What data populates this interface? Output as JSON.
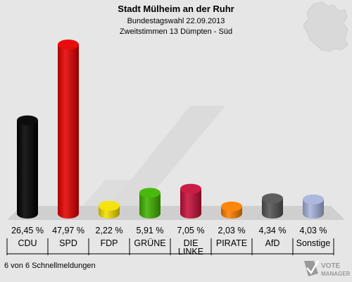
{
  "header": {
    "title": "Stadt Mülheim an der Ruhr",
    "subtitle1": "Bundestagswahl 22.09.2013",
    "subtitle2": "Zweitstimmen 13 Dümpten - Süd"
  },
  "footer": {
    "status": "6 von 6 Schnellmeldungen",
    "logo_text_1": "VOTE",
    "logo_text_2": "MANAGER"
  },
  "chart_data": {
    "type": "bar",
    "title": "Stadt Mülheim an der Ruhr",
    "subtitle": "Bundestagswahl 22.09.2013 · Zweitstimmen 13 Dümpten - Süd",
    "categories": [
      "CDU",
      "SPD",
      "FDP",
      "GRÜNE",
      "DIE LINKE",
      "PIRATE",
      "AfD",
      "Sonstige"
    ],
    "category_lines": [
      [
        "CDU"
      ],
      [
        "SPD"
      ],
      [
        "FDP"
      ],
      [
        "GRÜNE"
      ],
      [
        "DIE",
        "LINKE"
      ],
      [
        "PIRATE"
      ],
      [
        "AfD"
      ],
      [
        "Sonstige"
      ]
    ],
    "values": [
      26.45,
      47.97,
      2.22,
      5.91,
      7.05,
      2.03,
      4.34,
      4.03
    ],
    "value_labels": [
      "26,45 %",
      "47,97 %",
      "2,22 %",
      "5,91 %",
      "7,05 %",
      "2,03 %",
      "4,34 %",
      "4,03 %"
    ],
    "colors": [
      "#000000",
      "#e60000",
      "#f5e100",
      "#41b400",
      "#c8103c",
      "#ff8000",
      "#555555",
      "#a8b4dc"
    ],
    "unit": "%",
    "ylim": [
      0,
      50
    ],
    "grid": false,
    "legend": "none"
  }
}
